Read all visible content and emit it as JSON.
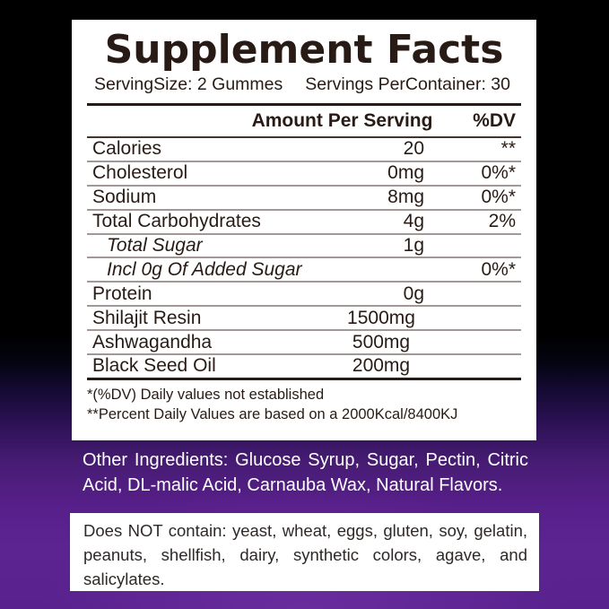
{
  "colors": {
    "background_top": "#000000",
    "background_bottom": "#5c2491",
    "panel": "#ffffff",
    "ink": "#281b15",
    "row_divider": "#a29897",
    "white_text": "#ffffff"
  },
  "label": {
    "title": "Supplement Facts",
    "serving_size": "ServingSize: 2 Gummes",
    "servings_per_container": "Servings PerContainer: 30",
    "columns": {
      "amount": "Amount Per Serving",
      "dv": "%DV"
    },
    "rows": [
      {
        "name": "Calories",
        "amount": "20",
        "dv": "**",
        "italic": false,
        "indent": false,
        "center_amount": false
      },
      {
        "name": "Cholesterol",
        "amount": "0mg",
        "dv": "0%*",
        "italic": false,
        "indent": false,
        "center_amount": false
      },
      {
        "name": "Sodium",
        "amount": "8mg",
        "dv": "0%*",
        "italic": false,
        "indent": false,
        "center_amount": false
      },
      {
        "name": "Total Carbohydrates",
        "amount": "4g",
        "dv": "2%",
        "italic": false,
        "indent": false,
        "center_amount": false
      },
      {
        "name": "Total Sugar",
        "amount": "1g",
        "dv": "",
        "italic": true,
        "indent": true,
        "center_amount": false
      },
      {
        "name": "Incl 0g Of Added Sugar",
        "amount": "",
        "dv": "0%*",
        "italic": true,
        "indent": true,
        "center_amount": false
      },
      {
        "name": "Protein",
        "amount": "0g",
        "dv": "",
        "italic": false,
        "indent": false,
        "center_amount": false
      },
      {
        "name": "Shilajit Resin",
        "amount": "1500mg",
        "dv": "",
        "italic": false,
        "indent": false,
        "center_amount": true
      },
      {
        "name": "Ashwagandha",
        "amount": "500mg",
        "dv": "",
        "italic": false,
        "indent": false,
        "center_amount": true
      },
      {
        "name": "Black Seed Oil",
        "amount": "200mg",
        "dv": "",
        "italic": false,
        "indent": false,
        "center_amount": true
      }
    ],
    "footnotes": [
      "*(%DV) Daily values not established",
      "**Percent Daily Values are based on a 2000Kcal/8400KJ"
    ]
  },
  "other_ingredients": {
    "lines": [
      "Other Ingredients: Glucose Syrup, Sugar, Pectin, Citric",
      "Acid, DL-malic Acid, Carnauba Wax, Natural Flavors."
    ]
  },
  "allergen_box": {
    "lines": [
      "Does NOT contain: yeast, wheat, eggs, gluten, soy, gelatin,",
      "peanuts, shellfish, dairy, synthetic colors, agave, and",
      "salicylates."
    ]
  }
}
